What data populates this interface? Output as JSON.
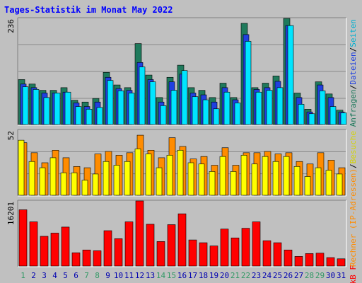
{
  "title": "Tages-Statistik im Monat May 2022",
  "colors": {
    "background": "#c0c0c0",
    "panel": "#c0c0c0",
    "grid": "#8a8a8a",
    "title": "#0000ff",
    "weekday_tick": "#0000b0",
    "weekend_tick": "#339966",
    "anfragen": "#1f7a5c",
    "dateien": "#2040e0",
    "seiten": "#00e5ff",
    "rechner": "#ff8c00",
    "besuche": "#ffff00",
    "kb": "#ff0000"
  },
  "side_labels": {
    "top": [
      {
        "text": "Anfragen",
        "color": "#1f7a5c"
      },
      {
        "text": "/",
        "color": "#000000"
      },
      {
        "text": "Dateien",
        "color": "#2040e0"
      },
      {
        "text": "/",
        "color": "#000000"
      },
      {
        "text": "Seiten",
        "color": "#00b0d0"
      }
    ],
    "middle": [
      {
        "text": "Rechner",
        "color": "#ff8c00"
      },
      {
        "text": " (IP-Adressen)",
        "color": "#ff8c00"
      },
      {
        "text": "/",
        "color": "#000000"
      },
      {
        "text": "Besuche",
        "color": "#d4d400"
      }
    ],
    "bottom": [
      {
        "text": "kB F",
        "color": "#ff0000"
      }
    ]
  },
  "chart_data": [
    {
      "type": "bar",
      "title": "Tages-Statistik im Monat May 2022",
      "ymax_label": "236",
      "ylim": [
        0,
        236
      ],
      "categories": [
        "1",
        "2",
        "3",
        "4",
        "5",
        "6",
        "7",
        "8",
        "9",
        "10",
        "11",
        "12",
        "13",
        "14",
        "15",
        "16",
        "17",
        "18",
        "19",
        "20",
        "21",
        "22",
        "23",
        "24",
        "25",
        "26",
        "27",
        "28",
        "29",
        "30",
        "31"
      ],
      "weekend": [
        "1",
        "7",
        "8",
        "14",
        "15",
        "21",
        "22",
        "28",
        "29"
      ],
      "series": [
        {
          "name": "Anfragen",
          "values": [
            100,
            90,
            76,
            76,
            82,
            54,
            50,
            58,
            116,
            88,
            82,
            180,
            110,
            60,
            105,
            132,
            82,
            76,
            60,
            92,
            60,
            225,
            82,
            92,
            108,
            236,
            70,
            34,
            95,
            68,
            32
          ]
        },
        {
          "name": "Dateien",
          "values": [
            90,
            82,
            70,
            70,
            72,
            48,
            40,
            50,
            105,
            80,
            76,
            138,
            100,
            50,
            95,
            112,
            70,
            66,
            50,
            82,
            55,
            200,
            78,
            82,
            96,
            220,
            60,
            28,
            88,
            60,
            28
          ]
        },
        {
          "name": "Seiten",
          "values": [
            84,
            78,
            60,
            70,
            72,
            40,
            34,
            38,
            98,
            75,
            70,
            128,
            95,
            42,
            76,
            120,
            62,
            55,
            35,
            72,
            48,
            185,
            72,
            76,
            82,
            220,
            45,
            24,
            75,
            40,
            26
          ]
        }
      ]
    },
    {
      "type": "bar",
      "ymax_label": "52",
      "ylim": [
        0,
        52
      ],
      "categories": [
        "1",
        "2",
        "3",
        "4",
        "5",
        "6",
        "7",
        "8",
        "9",
        "10",
        "11",
        "12",
        "13",
        "14",
        "15",
        "16",
        "17",
        "18",
        "19",
        "20",
        "21",
        "22",
        "23",
        "24",
        "25",
        "26",
        "27",
        "28",
        "29",
        "30",
        "31"
      ],
      "series": [
        {
          "name": "Rechner (IP-Adressen)",
          "values": [
            42,
            34,
            26,
            36,
            30,
            23,
            22,
            33,
            35,
            32,
            34,
            48,
            36,
            30,
            46,
            39,
            29,
            31,
            24,
            38,
            24,
            34,
            34,
            35,
            33,
            34,
            27,
            25,
            34,
            28,
            22
          ]
        },
        {
          "name": "Besuche",
          "values": [
            44,
            27,
            22,
            30,
            18,
            18,
            12,
            17,
            27,
            24,
            27,
            37,
            33,
            22,
            32,
            36,
            26,
            25,
            19,
            31,
            19,
            32,
            25,
            31,
            27,
            31,
            23,
            15,
            22,
            20,
            17
          ]
        }
      ]
    },
    {
      "type": "bar",
      "ymax_label": "16201",
      "ylim": [
        0,
        16201
      ],
      "categories": [
        "1",
        "2",
        "3",
        "4",
        "5",
        "6",
        "7",
        "8",
        "9",
        "10",
        "11",
        "12",
        "13",
        "14",
        "15",
        "16",
        "17",
        "18",
        "19",
        "20",
        "21",
        "22",
        "23",
        "24",
        "25",
        "26",
        "27",
        "28",
        "29",
        "30",
        "31"
      ],
      "series": [
        {
          "name": "kB F",
          "values": [
            14000,
            11000,
            7400,
            8200,
            9700,
            3300,
            4000,
            3800,
            8800,
            6800,
            11000,
            16201,
            10400,
            6100,
            10300,
            13000,
            6500,
            5800,
            5000,
            9200,
            7000,
            9400,
            11000,
            6300,
            5800,
            4000,
            2400,
            3100,
            3200,
            2100,
            1800
          ]
        }
      ]
    }
  ]
}
